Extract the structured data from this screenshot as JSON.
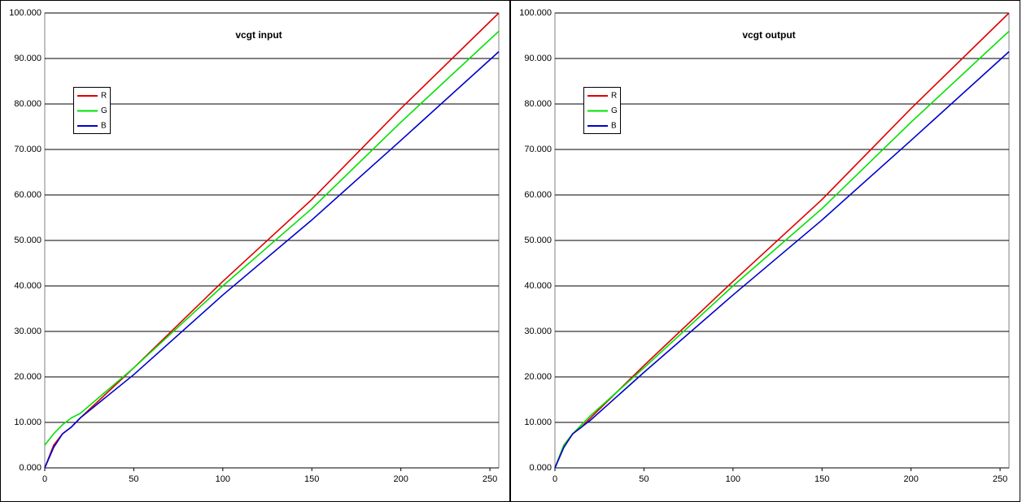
{
  "chart_data": [
    {
      "type": "line",
      "title": "vcgt input",
      "x": [
        0,
        5,
        10,
        15,
        20,
        50,
        100,
        150,
        200,
        255
      ],
      "series": [
        {
          "name": "R",
          "color": "#e00000",
          "values": [
            0,
            5,
            7.5,
            9,
            11,
            22,
            41,
            59,
            79,
            100
          ]
        },
        {
          "name": "G",
          "color": "#00e000",
          "values": [
            5,
            7.5,
            9.5,
            11,
            12,
            22,
            40,
            57,
            76,
            96
          ]
        },
        {
          "name": "B",
          "color": "#0000cc",
          "values": [
            0,
            4.5,
            7.5,
            9,
            11,
            20.5,
            38,
            54.5,
            72,
            91.5
          ]
        }
      ],
      "xlim": [
        0,
        255
      ],
      "xticks": [
        0,
        50,
        100,
        150,
        200,
        250
      ],
      "ylim": [
        0,
        100
      ],
      "yticks": [
        {
          "value": 0,
          "label": "0.000"
        },
        {
          "value": 10,
          "label": "10.000"
        },
        {
          "value": 20,
          "label": "20.000"
        },
        {
          "value": 30,
          "label": "30.000"
        },
        {
          "value": 40,
          "label": "40.000"
        },
        {
          "value": 50,
          "label": "50.000"
        },
        {
          "value": 60,
          "label": "60.000"
        },
        {
          "value": 70,
          "label": "70.000"
        },
        {
          "value": 80,
          "label": "80.000"
        },
        {
          "value": 90,
          "label": "90.000"
        },
        {
          "value": 100,
          "label": "100.000"
        }
      ],
      "grid": true,
      "legend": "upper left"
    },
    {
      "type": "line",
      "title": "vcgt output",
      "x": [
        0,
        5,
        10,
        15,
        20,
        50,
        100,
        150,
        200,
        255
      ],
      "series": [
        {
          "name": "R",
          "color": "#e00000",
          "values": [
            0,
            5,
            7.5,
            9,
            11,
            22.5,
            41,
            59,
            79,
            100
          ]
        },
        {
          "name": "G",
          "color": "#00e000",
          "values": [
            0,
            5,
            7.5,
            9.5,
            11.5,
            22,
            40,
            57,
            76,
            96
          ]
        },
        {
          "name": "B",
          "color": "#0000cc",
          "values": [
            0,
            4.5,
            7.5,
            9,
            10.5,
            21,
            38,
            54.5,
            72,
            91.5
          ]
        }
      ],
      "xlim": [
        0,
        255
      ],
      "xticks": [
        0,
        50,
        100,
        150,
        200,
        250
      ],
      "ylim": [
        0,
        100
      ],
      "yticks": [
        {
          "value": 0,
          "label": "0.000"
        },
        {
          "value": 10,
          "label": "10.000"
        },
        {
          "value": 20,
          "label": "20.000"
        },
        {
          "value": 30,
          "label": "30.000"
        },
        {
          "value": 40,
          "label": "40.000"
        },
        {
          "value": 50,
          "label": "50.000"
        },
        {
          "value": 60,
          "label": "60.000"
        },
        {
          "value": 70,
          "label": "70.000"
        },
        {
          "value": 80,
          "label": "80.000"
        },
        {
          "value": 90,
          "label": "90.000"
        },
        {
          "value": 100,
          "label": "100.000"
        }
      ],
      "grid": true,
      "legend": "upper left"
    }
  ]
}
